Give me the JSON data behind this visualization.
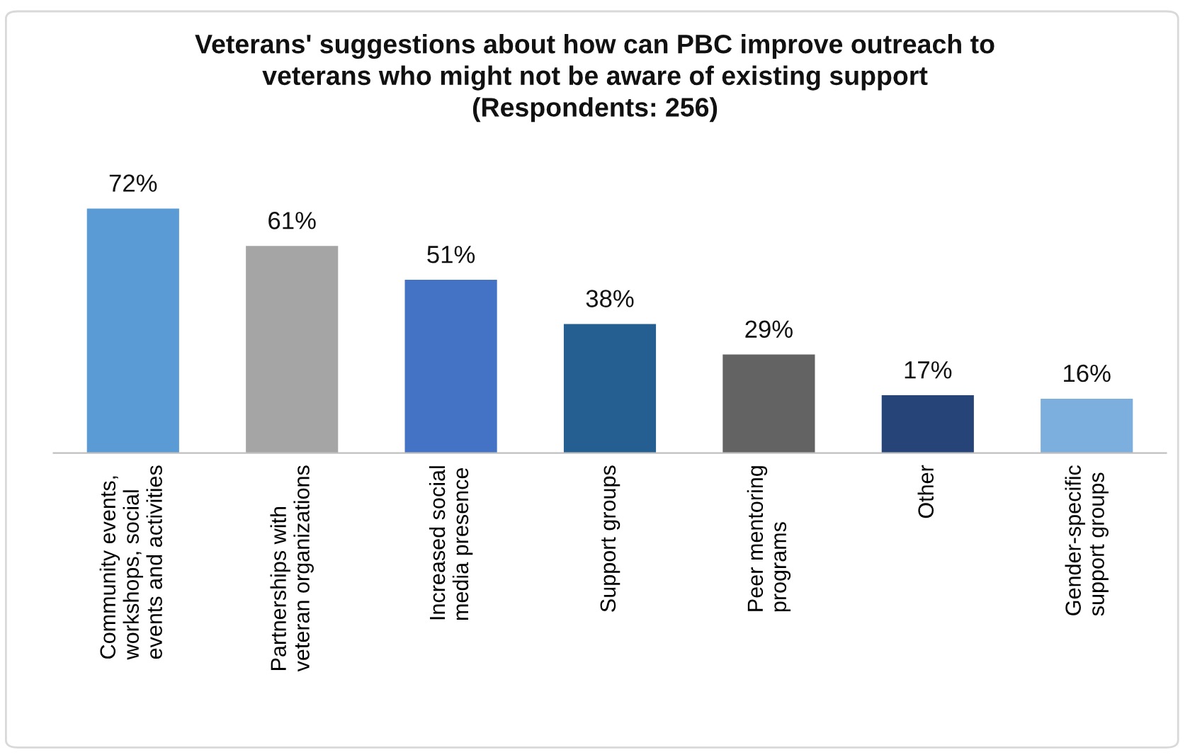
{
  "chart_data": {
    "type": "bar",
    "title": "Veterans' suggestions about how can PBC improve outreach to\nveterans who might not be aware of existing support\n(Respondents: 256)",
    "categories": [
      "Community events,\nworkshops, social\nevents and activities",
      "Partnerships with\nveteran organizations",
      "Increased social\nmedia presence",
      "Support groups",
      "Peer mentoring\nprograms",
      "Other",
      "Gender-specific\nsupport groups"
    ],
    "values": [
      72,
      61,
      51,
      38,
      29,
      17,
      16
    ],
    "value_labels": [
      "72%",
      "61%",
      "51%",
      "38%",
      "29%",
      "17%",
      "16%"
    ],
    "colors": [
      "#5b9bd5",
      "#a5a5a5",
      "#4472c4",
      "#255e91",
      "#636363",
      "#264478",
      "#7cafdd"
    ],
    "data_labels": false
  }
}
